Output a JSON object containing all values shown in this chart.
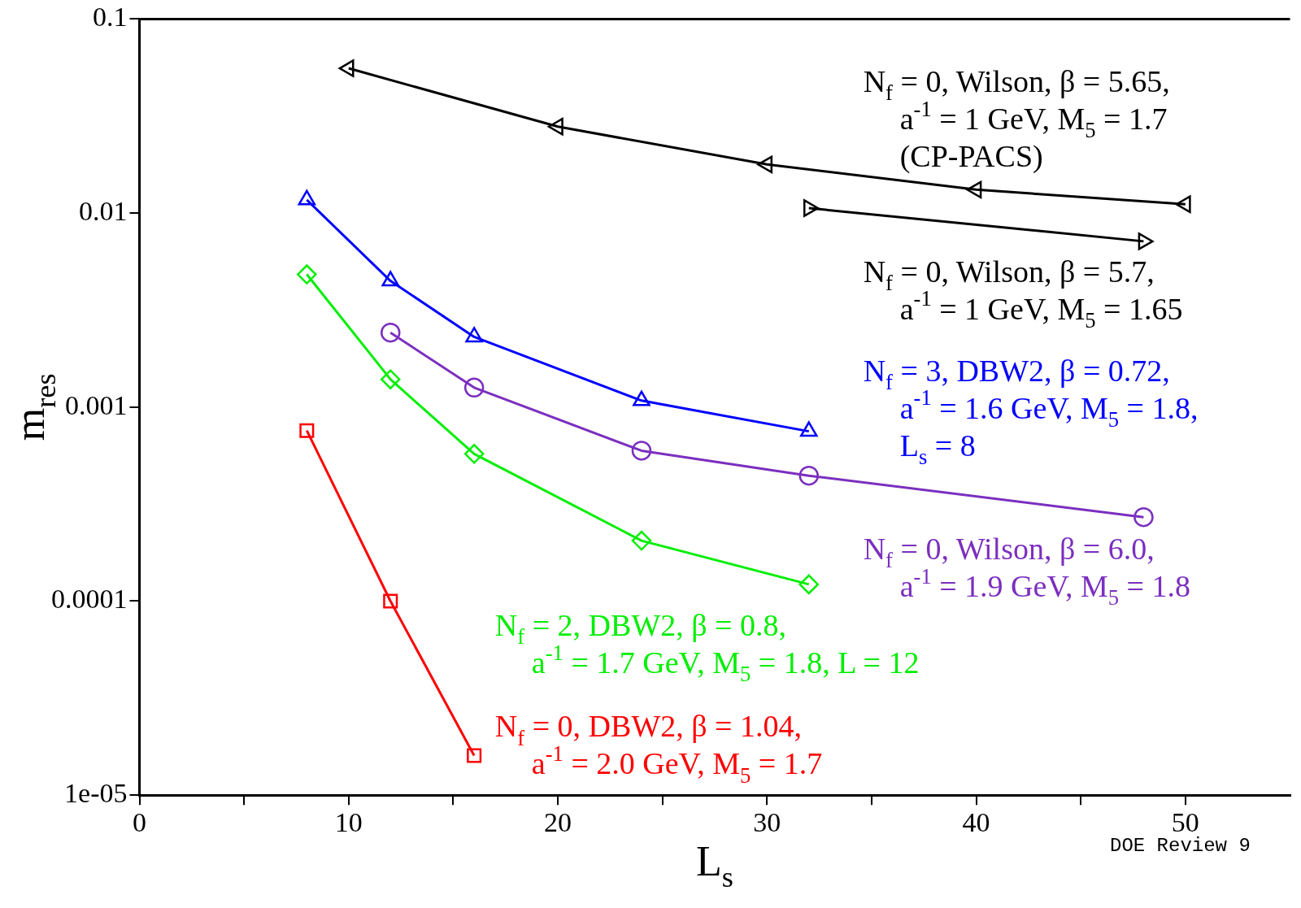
{
  "chart_data": {
    "type": "line",
    "xlabel": "L$_{s}$",
    "ylabel": "m$_{res}$",
    "log": "y",
    "xlim": [
      0,
      55
    ],
    "ylim": [
      1e-05,
      0.1
    ],
    "xticks": [
      0,
      {
        "value": 5,
        "label": null
      },
      10,
      {
        "value": 15,
        "label": null
      },
      20,
      {
        "value": 25,
        "label": null
      },
      30,
      {
        "value": 35,
        "label": null
      },
      40,
      {
        "value": 45,
        "label": null
      },
      50
    ],
    "yticks": [
      {
        "value": 1e-05,
        "label": "1e-05"
      },
      0.0001,
      0.001,
      0.01,
      0.1
    ],
    "grid": false,
    "legend": false,
    "line_style": "solid",
    "series": [
      {
        "name": "N$_{f}$ = 0, Wilson, β = 5.65,\na$^{-1}$ = 1 GeV, M$_{5}$ = 1.7\n(CP-PACS)",
        "color": "#000000",
        "marker": "triangle",
        "x": [
          10,
          20,
          30,
          40,
          50
        ],
        "values": [
          0.0557,
          0.0279,
          0.0178,
          0.0132,
          0.0111
        ]
      },
      {
        "name": "N$_{f}$ = 0, Wilson, β = 5.7,\na$^{-1}$ = 1 GeV, M$_{5}$ = 1.65",
        "color": "#000000",
        "marker": "triangle",
        "x": [
          32,
          48
        ],
        "values": [
          0.0106,
          0.00715
        ]
      },
      {
        "name": "N$_{f}$ = 3, DBW2, β = 0.72,\na$^{-1}$ = 1.6 GeV, M$_{5}$ = 1.8,\nL$_{s}$ = 8",
        "color": "#0000ff",
        "marker": "triangle",
        "x": [
          8,
          12,
          16,
          24,
          32
        ],
        "values": [
          0.0117,
          0.00447,
          0.0023,
          0.00108,
          0.00075
        ]
      },
      {
        "name": "N$_{f}$ = 0, Wilson, β = 6.0,\na$^{-1}$ = 1.9 GeV, M$_{5}$ = 1.8",
        "color": "#7b2fbf",
        "marker": "circle",
        "x": [
          12,
          16,
          24,
          32,
          48
        ],
        "values": [
          0.00242,
          0.00126,
          0.000596,
          0.000443,
          0.000271
        ]
      },
      {
        "name": "N$_{f}$ = 2, DBW2, β = 0.8,\na$^{-1}$ = 1.7 GeV, M$_{5}$ = 1.8, L = 12",
        "color": "#00ee00",
        "marker": "diamond",
        "x": [
          8,
          12,
          16,
          24,
          32
        ],
        "values": [
          0.00483,
          0.00139,
          0.000574,
          0.000205,
          0.000122
        ]
      },
      {
        "name": "N$_{f}$ = 0, DBW2, β = 1.04,\na$^{-1}$ = 2.0 GeV, M$_{5}$ = 1.7",
        "color": "#ff0000",
        "marker": "square",
        "x": [
          8,
          12,
          16
        ],
        "values": [
          0.000757,
          0.0001,
          1.6e-05
        ]
      }
    ],
    "annotations": [
      "DOE Review 9"
    ]
  }
}
